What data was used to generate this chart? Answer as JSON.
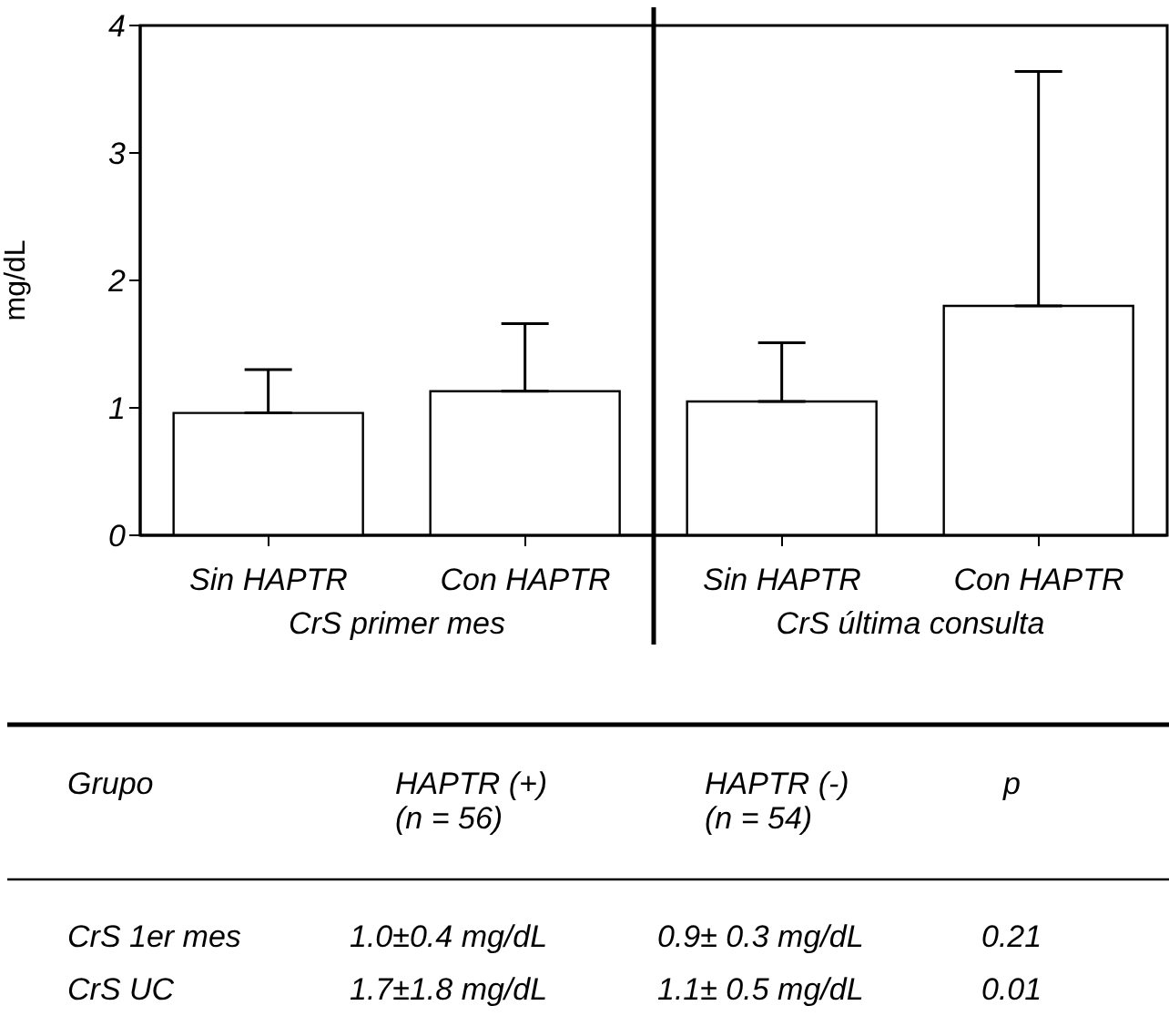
{
  "chart_data": {
    "type": "bar",
    "ylabel": "mg/dL",
    "categories": [
      "Sin HAPTR",
      "Con HAPTR",
      "Sin HAPTR",
      "Con HAPTR"
    ],
    "values": [
      0.96,
      1.13,
      1.05,
      1.8
    ],
    "color": "#ffffff",
    "errors": [
      [
        0.96,
        1.3
      ],
      [
        1.13,
        1.66
      ],
      [
        1.05,
        1.51
      ],
      [
        1.8,
        3.64
      ]
    ],
    "ylim": [
      0,
      4
    ],
    "yticks": [
      0,
      1,
      2,
      3,
      4
    ],
    "grid": false,
    "legend": false,
    "annotations": [
      "CrS primer mes",
      "CrS última consulta",
      "Grupo",
      "HAPTR (+)",
      "(n = 56)",
      "HAPTR (-)",
      "(n = 54)",
      "p",
      "CrS 1er mes",
      "1.0±0.4 mg/dL",
      "0.9± 0.3 mg/dL",
      "0.21",
      "CrS UC",
      "1.7±1.8 mg/dL",
      "1.1± 0.5 mg/dL",
      "0.01"
    ]
  }
}
